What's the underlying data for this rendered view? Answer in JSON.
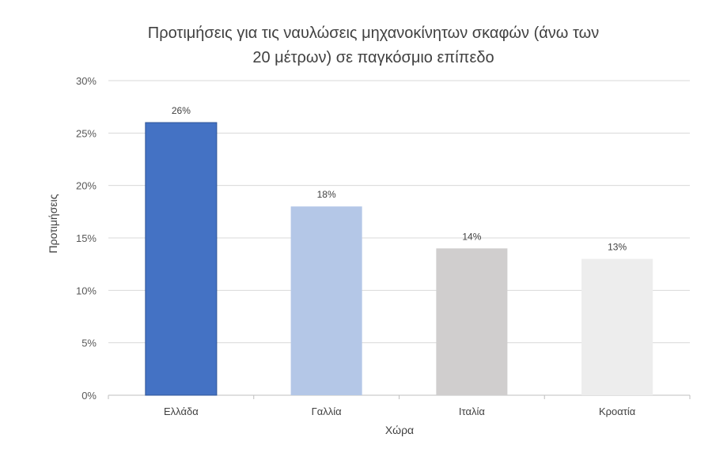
{
  "chart_data": {
    "type": "bar",
    "title_lines": [
      "Προτιμήσεις για τις ναυλώσεις μηχανοκίνητων σκαφών (άνω των",
      "20 μέτρων) σε παγκόσμιο επίπεδο"
    ],
    "xlabel": "Χώρα",
    "ylabel": "Προτιμήσεις",
    "categories": [
      "Ελλάδα",
      "Γαλλία",
      "Ιταλία",
      "Κροατία"
    ],
    "values": [
      26,
      18,
      14,
      13
    ],
    "data_labels": [
      "26%",
      "18%",
      "14%",
      "13%"
    ],
    "bar_colors": [
      "#4472C4",
      "#B4C7E7",
      "#D0CECE",
      "#EDEDED"
    ],
    "ylim": [
      0,
      30
    ],
    "y_ticks": [
      0,
      5,
      10,
      15,
      20,
      25,
      30
    ],
    "y_tick_labels": [
      "0%",
      "5%",
      "10%",
      "15%",
      "20%",
      "25%",
      "30%"
    ],
    "grid": true,
    "legend": "none"
  }
}
